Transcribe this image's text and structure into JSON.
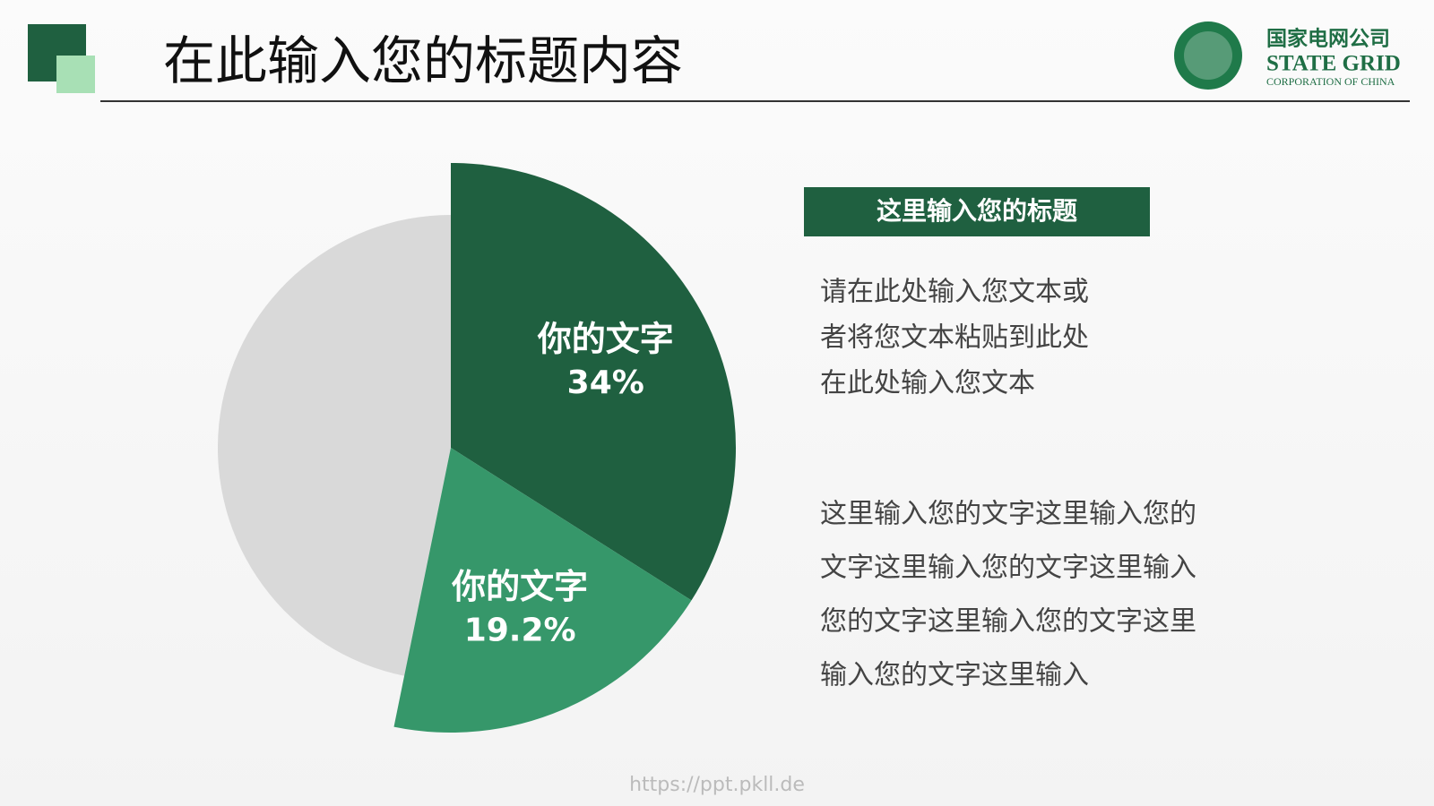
{
  "header": {
    "title": "在此输入您的标题内容",
    "logo_cn": "国家电网公司",
    "logo_en": "STATE GRID",
    "logo_sub": "CORPORATION OF CHINA"
  },
  "chart_data": {
    "type": "pie",
    "categories": [
      "你的文字",
      "你的文字",
      null
    ],
    "values": [
      34,
      19.2,
      46.8
    ],
    "value_labels": [
      "34%",
      "19.2%",
      null
    ],
    "colors": [
      "#1f6040",
      "#36976a",
      "#d9d9d9"
    ],
    "exploded": [
      true,
      true,
      false
    ]
  },
  "panel": {
    "title": "这里输入您的标题",
    "paragraph1": [
      "请在此处输入您文本或",
      "者将您文本粘贴到此处",
      "在此处输入您文本"
    ],
    "paragraph2": [
      "这里输入您的文字这里输入您的",
      "文字这里输入您的文字这里输入",
      "您的文字这里输入您的文字这里",
      "输入您的文字这里输入"
    ]
  },
  "footer": {
    "url": "https://ppt.pkll.de"
  }
}
